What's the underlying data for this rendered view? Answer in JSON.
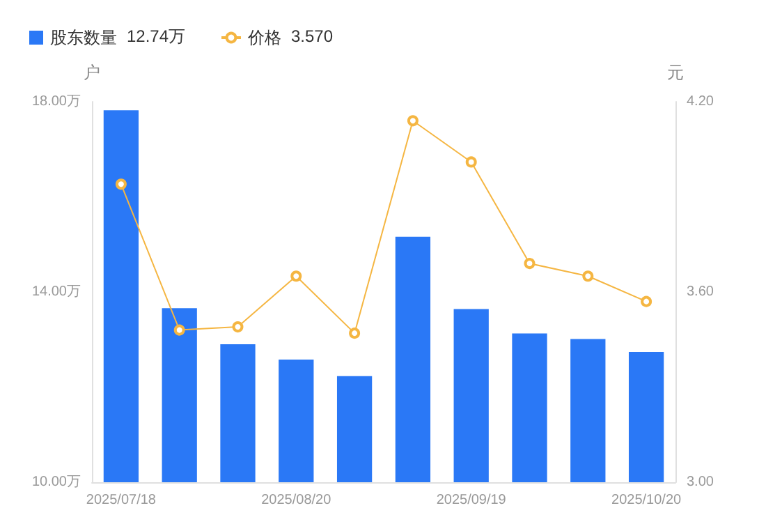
{
  "chart_data": {
    "type": "bar",
    "categories": [
      "2025/07/18",
      null,
      null,
      "2025/08/20",
      null,
      null,
      "2025/09/19",
      null,
      null,
      "2025/10/20"
    ],
    "series": [
      {
        "name": "股东数量",
        "color": "#2a78f6",
        "values": [
          17.82,
          13.66,
          12.9,
          12.58,
          12.23,
          15.16,
          13.64,
          13.13,
          13.01,
          12.74
        ]
      },
      {
        "name": "价格",
        "type": "line",
        "axis": "y2",
        "color": "#f5b642",
        "marker": "circle",
        "values": [
          3.94,
          3.48,
          3.49,
          3.65,
          3.47,
          4.14,
          4.01,
          3.69,
          3.65,
          3.57
        ]
      }
    ],
    "annotations": [
      "12.74万",
      "3.570"
    ],
    "ylabel": "户",
    "y2label": "元",
    "ylim": [
      10,
      18
    ],
    "yticks": [
      {
        "value": 10,
        "label": "10.00万"
      },
      {
        "value": 14,
        "label": "14.00万"
      },
      {
        "value": 18,
        "label": "18.00万"
      }
    ],
    "y2lim": [
      3,
      4.2
    ],
    "y2ticks": [
      {
        "value": 3,
        "label": "3.00"
      },
      {
        "value": 3.6,
        "label": "3.60"
      },
      {
        "value": 4.2,
        "label": "4.20"
      }
    ],
    "grid": false,
    "legend": "top left"
  }
}
